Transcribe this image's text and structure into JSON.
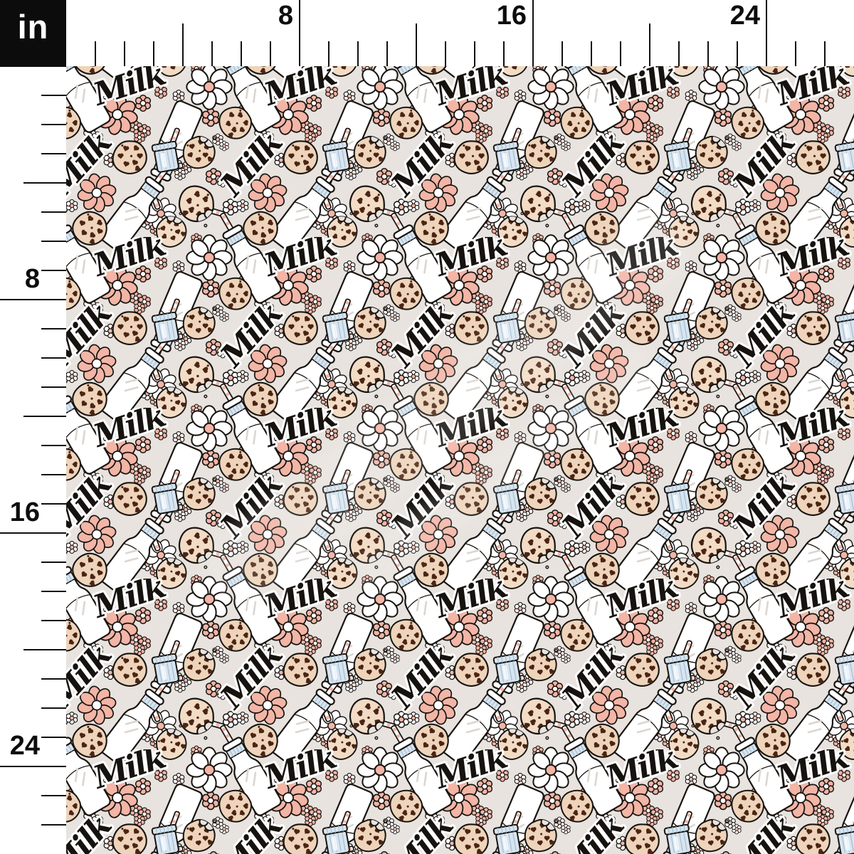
{
  "ruler": {
    "unit_label": "in",
    "top_labels": [
      "8",
      "16",
      "24"
    ],
    "left_labels": [
      "8",
      "16",
      "24"
    ]
  },
  "swatch": {
    "script_text": "Milk",
    "motifs": [
      "milk-bottle",
      "striped-straw",
      "milk-jar",
      "chocolate-chip-cookie",
      "bitten-cookie",
      "pink-flower",
      "white-daisy",
      "small-flower",
      "milk-script"
    ],
    "colors": {
      "background": "#e8e3de",
      "outline": "#171411",
      "cookie_dough": "#eed4ba",
      "cookie_dough_light": "#f2dcc6",
      "chocolate_chip": "#4b2413",
      "pink": "#f2b5a6",
      "white": "#ffffff",
      "light_blue": "#d8e5f0",
      "blue_line": "#a7c0d4",
      "shine_gray": "#dcd6d0"
    }
  }
}
